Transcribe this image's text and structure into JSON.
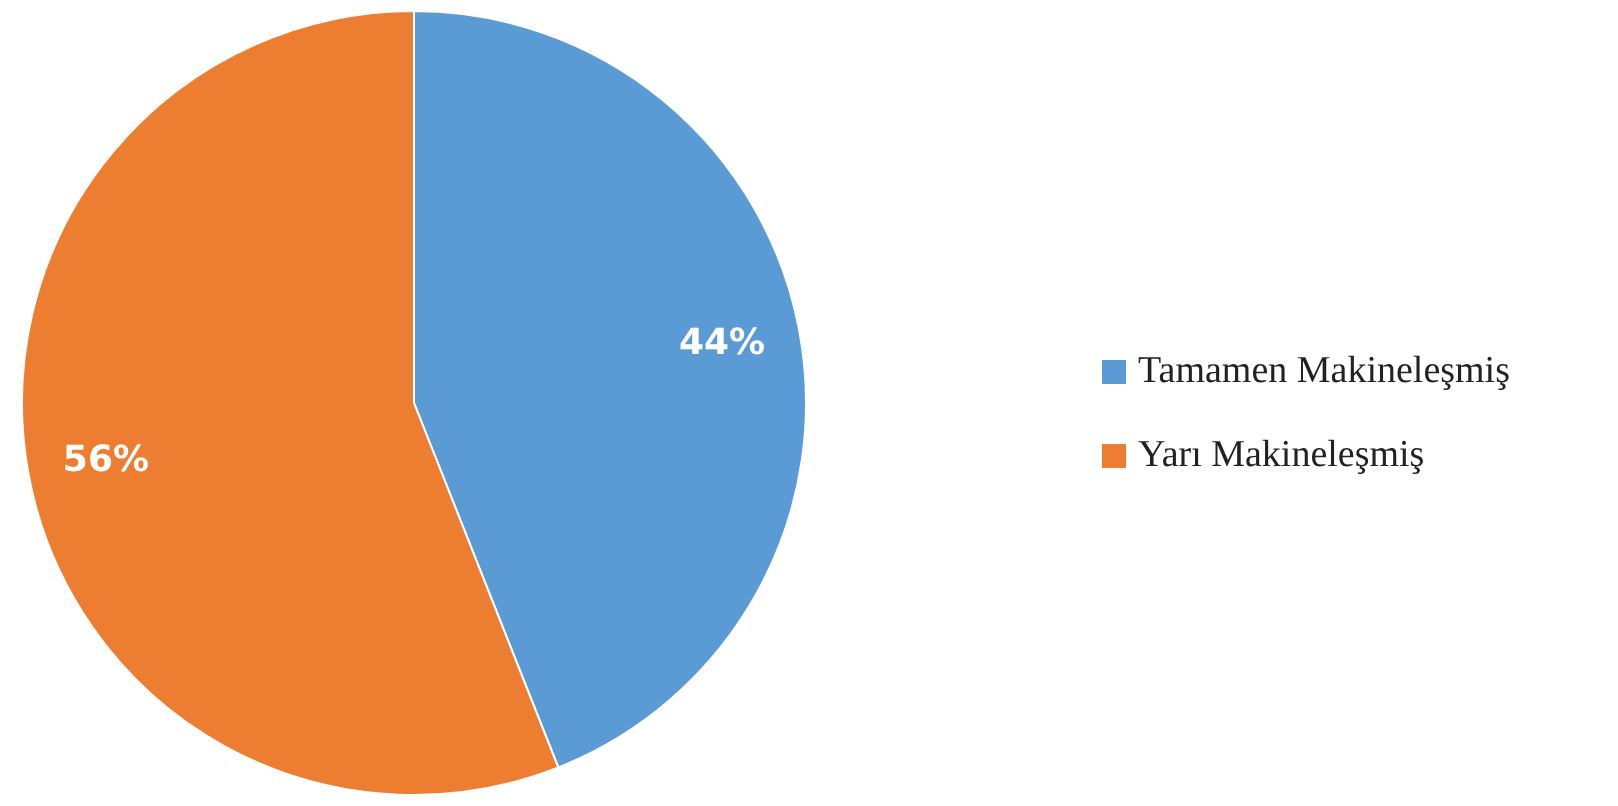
{
  "chart_data": {
    "type": "pie",
    "categories": [
      "Tamamen Makineleşmiş",
      "Yarı Makineleşmiş"
    ],
    "values": [
      44,
      56
    ],
    "colors": [
      "#5b9bd5",
      "#ed7d31"
    ],
    "value_labels": [
      "44%",
      "56%"
    ],
    "legend": "right"
  }
}
